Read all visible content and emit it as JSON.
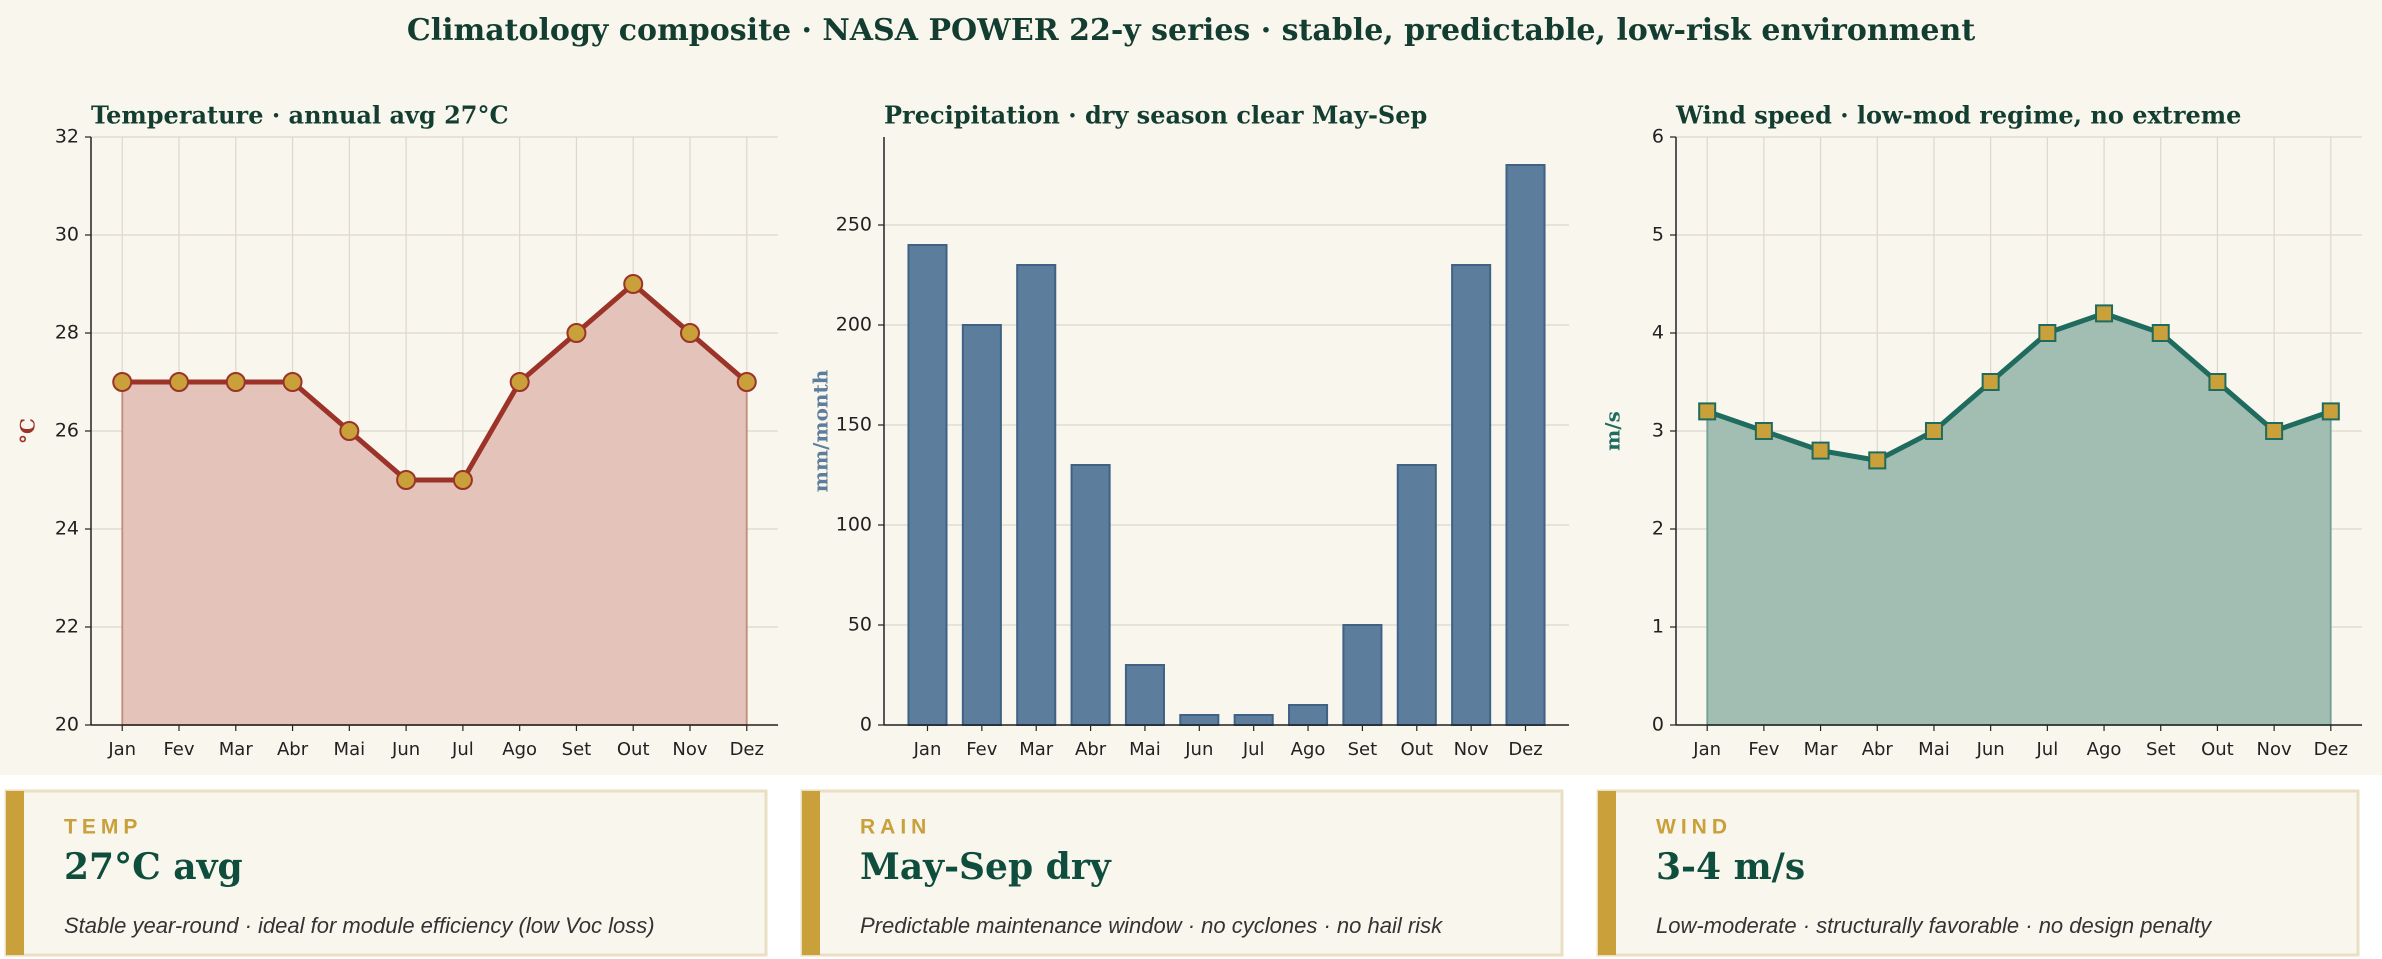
{
  "title": "Climatology composite · NASA POWER 22-y series · stable, predictable, low-risk environment",
  "chart_data": [
    {
      "type": "line",
      "title": "Temperature · annual avg 27°C",
      "ylabel": "°C",
      "categories": [
        "Jan",
        "Fev",
        "Mar",
        "Abr",
        "Mai",
        "Jun",
        "Jul",
        "Ago",
        "Set",
        "Out",
        "Nov",
        "Dez"
      ],
      "values": [
        27,
        27,
        27,
        27,
        26,
        25,
        25,
        27,
        28,
        29,
        28,
        27
      ],
      "color": "#9b3328",
      "fill": "#e3c3ba",
      "marker": "circle",
      "marker_color": "#c9a03a",
      "ylim": [
        20,
        32
      ],
      "yticks": [
        20,
        22,
        24,
        26,
        28,
        30,
        32
      ],
      "grid": true
    },
    {
      "type": "bar",
      "title": "Precipitation · dry season clear May-Sep",
      "ylabel": "mm/month",
      "categories": [
        "Jan",
        "Fev",
        "Mar",
        "Abr",
        "Mai",
        "Jun",
        "Jul",
        "Ago",
        "Set",
        "Out",
        "Nov",
        "Dez"
      ],
      "values": [
        240,
        200,
        230,
        130,
        30,
        5,
        5,
        10,
        50,
        130,
        230,
        280
      ],
      "color": "#5d7d9c",
      "edge_color": "#3f6285",
      "ylim": [
        0,
        294
      ],
      "yticks": [
        0,
        50,
        100,
        150,
        200,
        250
      ],
      "grid": true
    },
    {
      "type": "line",
      "title": "Wind speed · low-mod regime, no extreme",
      "ylabel": "m/s",
      "categories": [
        "Jan",
        "Fev",
        "Mar",
        "Abr",
        "Mai",
        "Jun",
        "Jul",
        "Ago",
        "Set",
        "Out",
        "Nov",
        "Dez"
      ],
      "values": [
        3.2,
        3.0,
        2.8,
        2.7,
        3.0,
        3.5,
        4.0,
        4.2,
        4.0,
        3.5,
        3.0,
        3.2
      ],
      "color": "#1f6b5e",
      "fill": "#a2bdb2",
      "marker": "square",
      "marker_color": "#c9a03a",
      "ylim": [
        0,
        6
      ],
      "yticks": [
        0,
        1,
        2,
        3,
        4,
        5,
        6
      ],
      "grid": true
    }
  ],
  "cards": [
    {
      "label": "TEMP",
      "headline": "27°C avg",
      "text": "Stable year-round · ideal for module efficiency (low Voc loss)"
    },
    {
      "label": "RAIN",
      "headline": "May-Sep dry",
      "text": "Predictable maintenance window · no cyclones · no hail risk"
    },
    {
      "label": "WIND",
      "headline": "3-4 m/s",
      "text": "Low-moderate · structurally favorable · no design penalty"
    }
  ]
}
